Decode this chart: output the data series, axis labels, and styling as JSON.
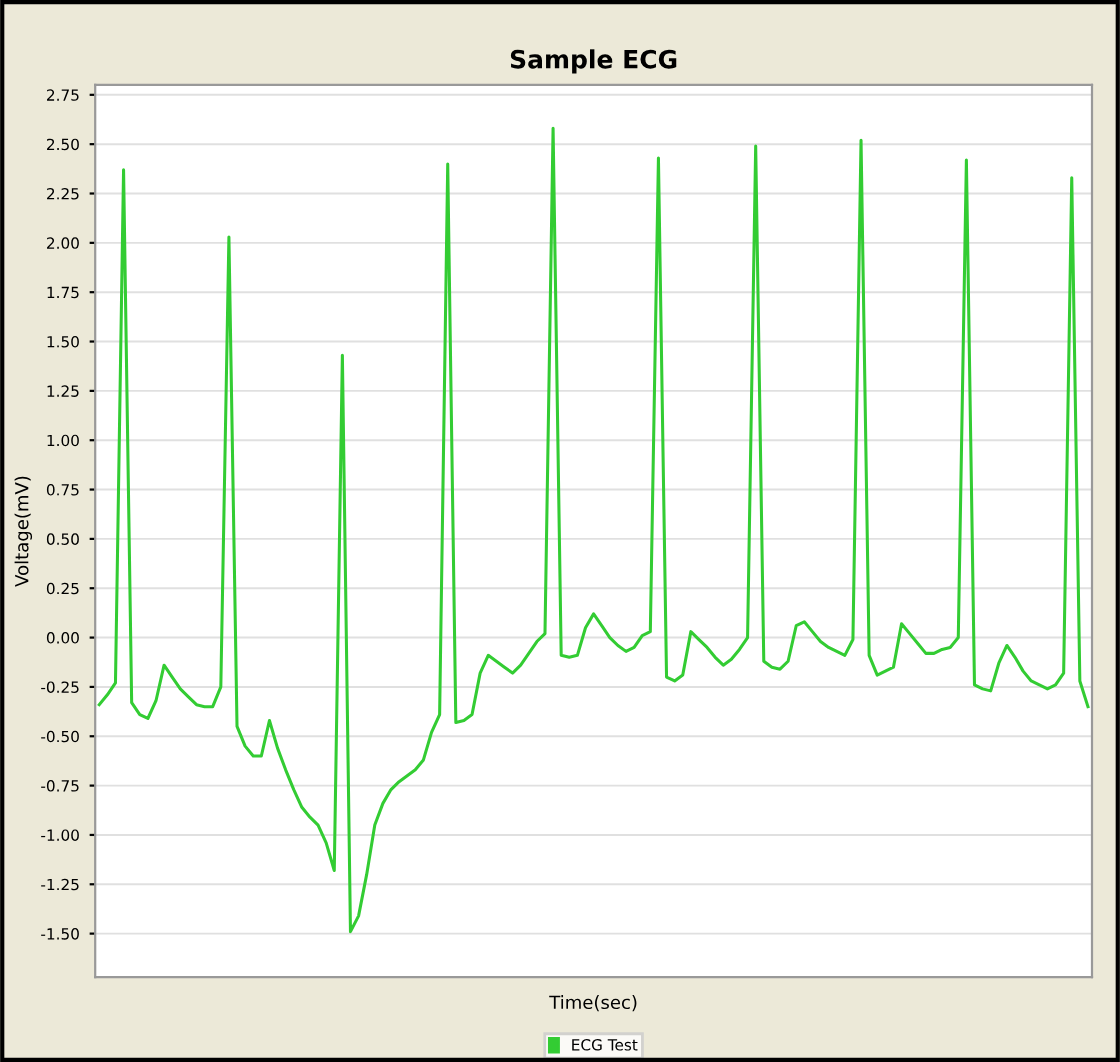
{
  "chart_data": {
    "type": "line",
    "title": "Sample ECG",
    "xlabel": "Time(sec)",
    "ylabel": "Voltage(mV)",
    "categories": [
      null,
      null,
      null,
      null,
      null,
      null,
      null,
      null,
      null,
      null,
      null,
      null,
      null,
      null,
      null,
      null,
      null,
      null,
      null,
      null,
      null,
      null,
      null,
      null,
      null,
      null,
      null,
      null,
      null,
      null,
      null,
      null,
      null,
      null,
      null,
      null,
      null,
      null,
      null,
      null,
      null,
      null,
      null,
      null,
      null,
      null,
      null,
      null,
      null,
      null,
      null,
      null,
      null,
      null,
      null,
      null,
      null,
      null,
      null,
      null,
      null,
      null,
      null,
      null,
      null,
      null,
      null,
      null,
      null,
      null,
      null,
      null,
      null,
      null,
      null,
      null,
      null,
      null,
      null,
      null,
      null,
      null,
      null,
      null,
      null,
      null,
      null,
      null,
      null,
      null,
      null,
      null,
      null,
      null,
      null,
      null,
      null,
      null,
      null,
      null,
      null,
      null,
      null,
      null,
      null,
      null,
      null,
      null,
      null,
      null,
      null,
      null,
      null,
      null,
      null,
      null,
      null,
      null,
      null,
      null,
      null,
      null,
      null
    ],
    "series": [
      {
        "name": "ECG Test",
        "color": "#33cc33",
        "values": [
          -0.34,
          -0.29,
          -0.23,
          2.37,
          -0.33,
          -0.39,
          -0.41,
          -0.32,
          -0.14,
          -0.2,
          -0.26,
          -0.3,
          -0.34,
          -0.35,
          -0.35,
          -0.25,
          2.03,
          -0.45,
          -0.55,
          -0.6,
          -0.6,
          -0.42,
          -0.56,
          -0.67,
          -0.77,
          -0.86,
          -0.91,
          -0.95,
          -1.04,
          -1.18,
          1.43,
          -1.49,
          -1.41,
          -1.2,
          -0.95,
          -0.84,
          -0.77,
          -0.73,
          -0.7,
          -0.67,
          -0.62,
          -0.48,
          -0.39,
          2.4,
          -0.43,
          -0.42,
          -0.39,
          -0.18,
          -0.09,
          -0.12,
          -0.15,
          -0.18,
          -0.14,
          -0.08,
          -0.02,
          0.02,
          2.58,
          -0.09,
          -0.1,
          -0.09,
          0.05,
          0.12,
          0.06,
          0.0,
          -0.04,
          -0.07,
          -0.05,
          0.01,
          0.03,
          2.43,
          -0.2,
          -0.22,
          -0.19,
          0.03,
          -0.01,
          -0.05,
          -0.1,
          -0.14,
          -0.11,
          -0.06,
          0.0,
          2.49,
          -0.12,
          -0.15,
          -0.16,
          -0.12,
          0.06,
          0.08,
          0.03,
          -0.02,
          -0.05,
          -0.07,
          -0.09,
          -0.01,
          2.52,
          -0.09,
          -0.19,
          -0.17,
          -0.15,
          0.07,
          0.02,
          -0.03,
          -0.08,
          -0.08,
          -0.06,
          -0.05,
          0.0,
          2.42,
          -0.24,
          -0.26,
          -0.27,
          -0.13,
          -0.04,
          -0.1,
          -0.17,
          -0.22,
          -0.24,
          -0.26,
          -0.24,
          -0.18,
          2.33,
          -0.22,
          -0.35
        ]
      }
    ],
    "ylim": [
      -1.72,
      2.8
    ],
    "yticks": [
      {
        "value": 2.75,
        "label": "2.75"
      },
      {
        "value": 2.5,
        "label": "2.50"
      },
      {
        "value": 2.25,
        "label": "2.25"
      },
      {
        "value": 2.0,
        "label": "2.00"
      },
      {
        "value": 1.75,
        "label": "1.75"
      },
      {
        "value": 1.5,
        "label": "1.50"
      },
      {
        "value": 1.25,
        "label": "1.25"
      },
      {
        "value": 1.0,
        "label": "1.00"
      },
      {
        "value": 0.75,
        "label": "0.75"
      },
      {
        "value": 0.5,
        "label": "0.50"
      },
      {
        "value": 0.25,
        "label": "0.25"
      },
      {
        "value": 0.0,
        "label": "0.00"
      },
      {
        "value": -0.25,
        "label": "-0.25"
      },
      {
        "value": -0.5,
        "label": "-0.50"
      },
      {
        "value": -0.75,
        "label": "-0.75"
      },
      {
        "value": -1.0,
        "label": "-1.00"
      },
      {
        "value": -1.25,
        "label": "-1.25"
      },
      {
        "value": -1.5,
        "label": "-1.50"
      }
    ],
    "grid": "y",
    "legend": "bottom",
    "marker": "none",
    "line_style": "solid"
  }
}
